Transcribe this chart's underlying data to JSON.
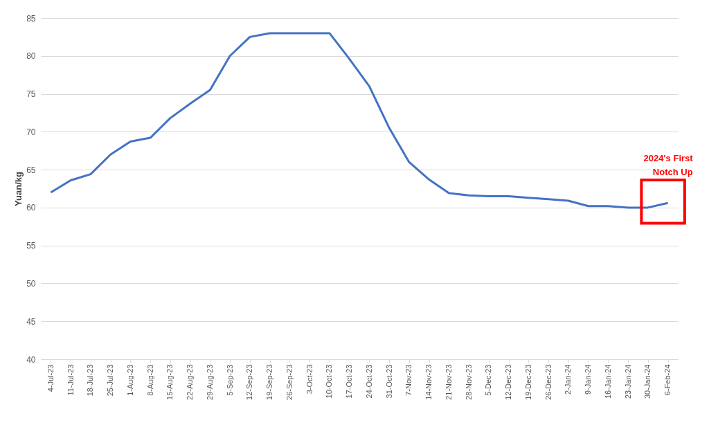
{
  "chart_data": {
    "type": "line",
    "ylabel": "Yuan/kg",
    "categories": [
      "4-Jul-23",
      "11-Jul-23",
      "18-Jul-23",
      "25-Jul-23",
      "1-Aug-23",
      "8-Aug-23",
      "15-Aug-23",
      "22-Aug-23",
      "29-Aug-23",
      "5-Sep-23",
      "12-Sep-23",
      "19-Sep-23",
      "26-Sep-23",
      "3-Oct-23",
      "10-Oct-23",
      "17-Oct-23",
      "24-Oct-23",
      "31-Oct-23",
      "7-Nov-23",
      "14-Nov-23",
      "21-Nov-23",
      "28-Nov-23",
      "5-Dec-23",
      "12-Dec-23",
      "19-Dec-23",
      "26-Dec-23",
      "2-Jan-24",
      "9-Jan-24",
      "16-Jan-24",
      "23-Jan-24",
      "30-Jan-24",
      "6-Feb-24"
    ],
    "series": [
      {
        "color": "#4472c4",
        "values": [
          62,
          63.6,
          64.4,
          67,
          68.7,
          69.2,
          71.8,
          73.7,
          75.5,
          80,
          82.5,
          83,
          83,
          83,
          83,
          79.6,
          76,
          70.5,
          66,
          63.7,
          61.9,
          61.6,
          61.5,
          61.5,
          61.3,
          61.1,
          60.9,
          60.2,
          60.2,
          60.0,
          60.0,
          60.6
        ]
      }
    ],
    "ylim": [
      40,
      85
    ],
    "yticks": [
      40,
      45,
      50,
      55,
      60,
      65,
      70,
      75,
      80,
      85
    ],
    "grid": "y",
    "marker": "none",
    "line_style": "solid",
    "annotations": [
      "2024's First\nNotch Up"
    ]
  }
}
